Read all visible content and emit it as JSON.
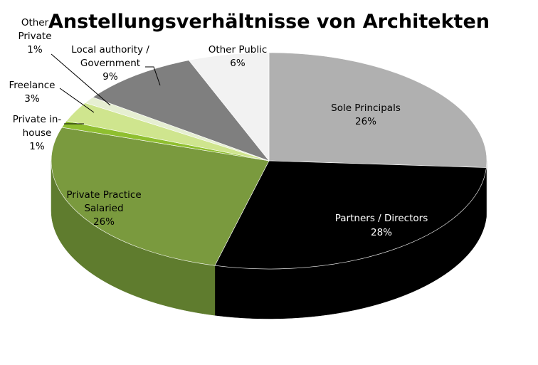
{
  "chart_data": {
    "type": "pie",
    "title": "Anstellungsverhältnisse von Architekten",
    "slices": [
      {
        "label": [
          "Sole Principals"
        ],
        "value": 26,
        "value_label": "26%",
        "color": "#b0b0b0",
        "side_color": "#8a8a8a"
      },
      {
        "label": [
          "Partners / Directors"
        ],
        "value": 28,
        "value_label": "28%",
        "color": "#000000",
        "side_color": "#000000"
      },
      {
        "label": [
          "Private Practice",
          "Salaried"
        ],
        "value": 26,
        "value_label": "26%",
        "color": "#7a9a3e",
        "side_color": "#5f7c2e"
      },
      {
        "label": [
          "Private in-",
          "house"
        ],
        "value": 1,
        "value_label": "1%",
        "color": "#8fbf2f",
        "side_color": "#6f9a22"
      },
      {
        "label": [
          "Freelance"
        ],
        "value": 3,
        "value_label": "3%",
        "color": "#cfe58e",
        "side_color": "#aac46a"
      },
      {
        "label": [
          "Other",
          "Private"
        ],
        "value": 1,
        "value_label": "1%",
        "color": "#e6efd2",
        "side_color": "#c4cdb0"
      },
      {
        "label": [
          "Local authority /",
          "Government"
        ],
        "value": 9,
        "value_label": "9%",
        "color": "#7f7f7f",
        "side_color": "#5e5e5e"
      },
      {
        "label": [
          "Other Public"
        ],
        "value": 6,
        "value_label": "6%",
        "color": "#f2f2f2",
        "side_color": "#cfcfcf"
      }
    ],
    "legend": "none"
  }
}
